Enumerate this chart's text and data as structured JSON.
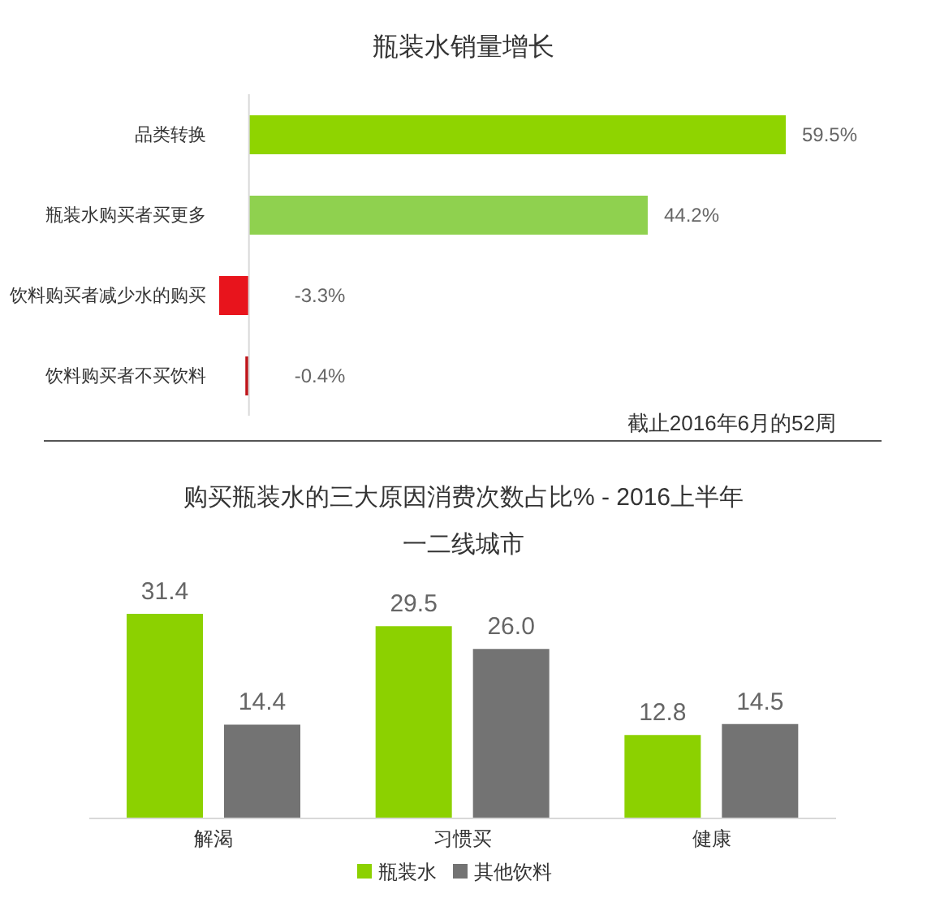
{
  "chart_data": [
    {
      "type": "bar",
      "orientation": "horizontal",
      "title": "瓶装水销量增长",
      "categories": [
        "品类转换",
        "瓶装水购买者买更多",
        "饮料购买者减少水的购买",
        "饮料购买者不买饮料"
      ],
      "values": [
        59.5,
        44.2,
        -3.3,
        -0.4
      ],
      "colors": [
        "#8fd400",
        "#8fd14f",
        "#e8141c",
        "#c0151b"
      ],
      "value_labels": [
        "59.5%",
        "44.2%",
        "-3.3%",
        "-0.4%"
      ],
      "tick_labels": "y",
      "annotations": [
        "截止2016年6月的52周"
      ]
    },
    {
      "type": "bar",
      "title": "购买瓶装水的三大原因消费次数占比% - 2016上半年",
      "subtitle": "一二线城市",
      "categories": [
        "解渴",
        "习惯买",
        "健康"
      ],
      "series": [
        {
          "name": "瓶装水",
          "color": "#8cd100",
          "values": [
            31.4,
            29.5,
            12.8
          ],
          "value_labels": [
            "31.4",
            "29.5",
            "12.8"
          ]
        },
        {
          "name": "其他饮料",
          "color": "#737373",
          "values": [
            14.4,
            26.0,
            14.5
          ],
          "value_labels": [
            "14.4",
            "26.0",
            "14.5"
          ]
        }
      ],
      "tick_labels": "x",
      "legend": "bottom"
    }
  ]
}
